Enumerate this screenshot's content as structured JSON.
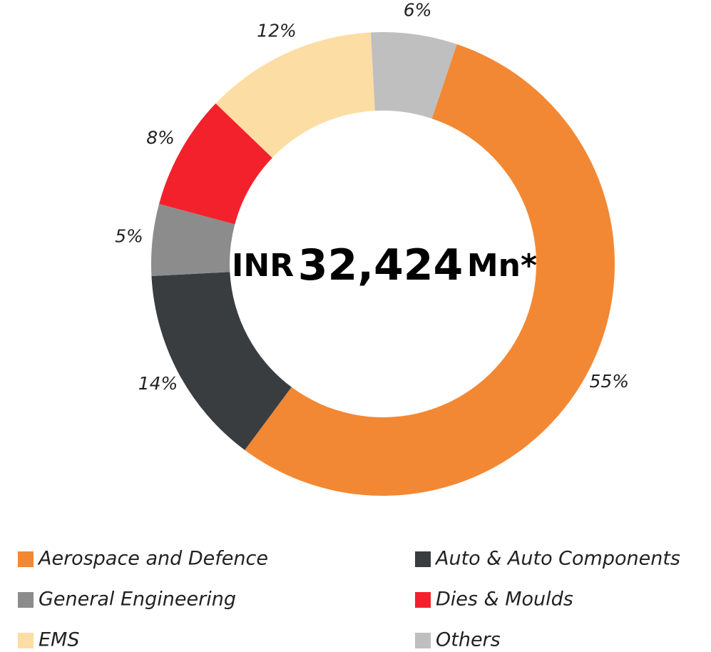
{
  "chart_data": {
    "type": "donut",
    "categories": [
      "Aerospace and Defence",
      "Auto & Auto Components",
      "General Engineering",
      "Dies & Moulds",
      "EMS",
      "Others"
    ],
    "values": [
      55,
      14,
      5,
      8,
      12,
      6
    ],
    "value_labels": [
      "55%",
      "14%",
      "5%",
      "8%",
      "12%",
      "6%"
    ],
    "colors": [
      "#F28834",
      "#3A3D40",
      "#8C8C8C",
      "#F2212B",
      "#FCDDA4",
      "#BFBFBF"
    ],
    "center_text": [
      "INR",
      "32,424",
      "Mn*"
    ],
    "legend": "bottom"
  }
}
